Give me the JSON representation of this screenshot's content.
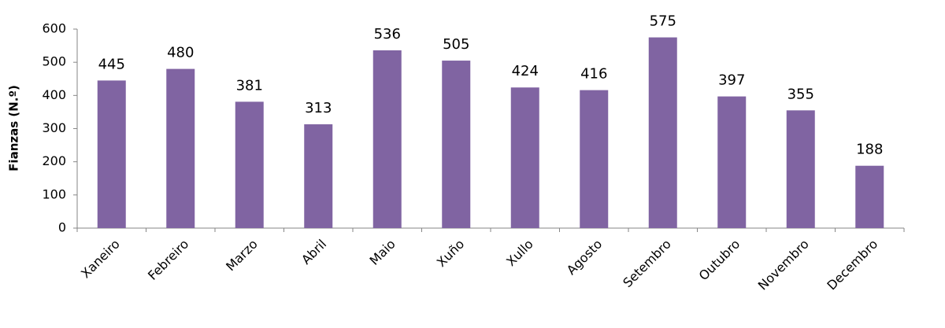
{
  "chart_data": {
    "type": "bar",
    "y_label": "Fianzas (N.º)",
    "categories": [
      "Xaneiro",
      "Febreiro",
      "Marzo",
      "Abril",
      "Maio",
      "Xuño",
      "Xullo",
      "Agosto",
      "Setembro",
      "Outubro",
      "Novembro",
      "Decembro"
    ],
    "values": [
      445,
      480,
      381,
      313,
      536,
      505,
      424,
      416,
      575,
      397,
      355,
      188
    ],
    "color": "#8064a2",
    "ylim": [
      0,
      600
    ],
    "yticks": [
      0,
      100,
      200,
      300,
      400,
      500,
      600
    ],
    "grid": false
  }
}
